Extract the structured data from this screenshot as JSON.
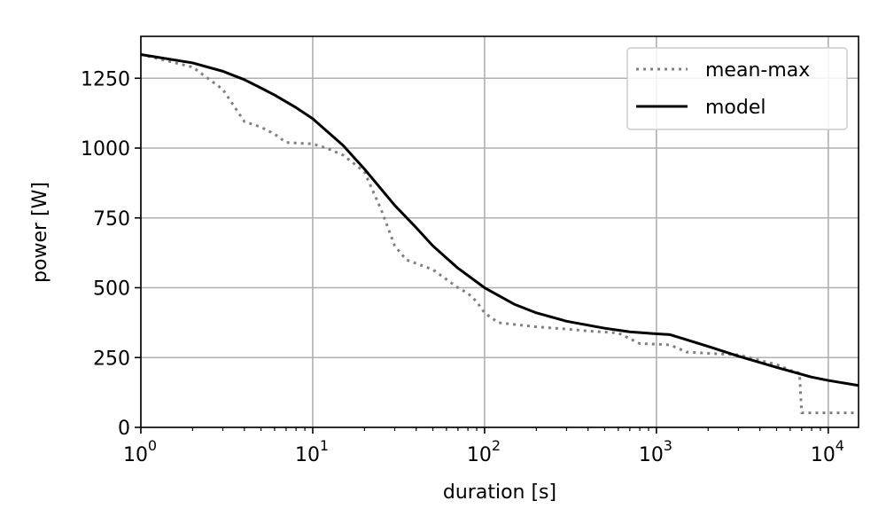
{
  "chart_data": {
    "type": "line",
    "xlabel": "duration [s]",
    "ylabel": "power [W]",
    "xscale": "log",
    "xlim": [
      1,
      15000
    ],
    "ylim": [
      0,
      1400
    ],
    "grid": true,
    "legend_position": "top-right",
    "x_ticks": [
      {
        "value": 1,
        "base": "10",
        "exp": "0"
      },
      {
        "value": 10,
        "base": "10",
        "exp": "1"
      },
      {
        "value": 100,
        "base": "10",
        "exp": "2"
      },
      {
        "value": 1000,
        "base": "10",
        "exp": "3"
      },
      {
        "value": 10000,
        "base": "10",
        "exp": "4"
      }
    ],
    "y_ticks": [
      {
        "value": 0,
        "label": "0"
      },
      {
        "value": 250,
        "label": "250"
      },
      {
        "value": 500,
        "label": "500"
      },
      {
        "value": 750,
        "label": "750"
      },
      {
        "value": 1000,
        "label": "1000"
      },
      {
        "value": 1250,
        "label": "1250"
      }
    ],
    "series": [
      {
        "name": "mean-max",
        "color": "#808080",
        "style": "dotted",
        "points": [
          [
            1,
            1335
          ],
          [
            2,
            1290
          ],
          [
            3,
            1210
          ],
          [
            4,
            1095
          ],
          [
            5,
            1075
          ],
          [
            6,
            1050
          ],
          [
            7,
            1020
          ],
          [
            10,
            1015
          ],
          [
            12,
            1000
          ],
          [
            15,
            975
          ],
          [
            20,
            915
          ],
          [
            25,
            780
          ],
          [
            30,
            650
          ],
          [
            35,
            600
          ],
          [
            50,
            565
          ],
          [
            70,
            500
          ],
          [
            80,
            480
          ],
          [
            90,
            450
          ],
          [
            100,
            410
          ],
          [
            120,
            375
          ],
          [
            200,
            360
          ],
          [
            300,
            352
          ],
          [
            400,
            345
          ],
          [
            600,
            338
          ],
          [
            800,
            300
          ],
          [
            1000,
            298
          ],
          [
            1200,
            295
          ],
          [
            1500,
            270
          ],
          [
            2000,
            265
          ],
          [
            3000,
            260
          ],
          [
            4000,
            240
          ],
          [
            5000,
            225
          ],
          [
            6000,
            205
          ],
          [
            6800,
            195
          ],
          [
            7000,
            52
          ],
          [
            10000,
            52
          ],
          [
            15000,
            52
          ]
        ]
      },
      {
        "name": "model",
        "color": "#000000",
        "style": "solid",
        "points": [
          [
            1,
            1335
          ],
          [
            2,
            1305
          ],
          [
            3,
            1275
          ],
          [
            4,
            1245
          ],
          [
            5,
            1215
          ],
          [
            6,
            1190
          ],
          [
            8,
            1145
          ],
          [
            10,
            1105
          ],
          [
            15,
            1010
          ],
          [
            20,
            925
          ],
          [
            30,
            795
          ],
          [
            40,
            715
          ],
          [
            50,
            650
          ],
          [
            70,
            570
          ],
          [
            100,
            500
          ],
          [
            150,
            440
          ],
          [
            200,
            410
          ],
          [
            300,
            380
          ],
          [
            500,
            355
          ],
          [
            700,
            342
          ],
          [
            1000,
            335
          ],
          [
            1200,
            332
          ],
          [
            2000,
            290
          ],
          [
            3000,
            255
          ],
          [
            5000,
            215
          ],
          [
            8000,
            180
          ],
          [
            10000,
            168
          ],
          [
            15000,
            150
          ]
        ]
      }
    ]
  }
}
